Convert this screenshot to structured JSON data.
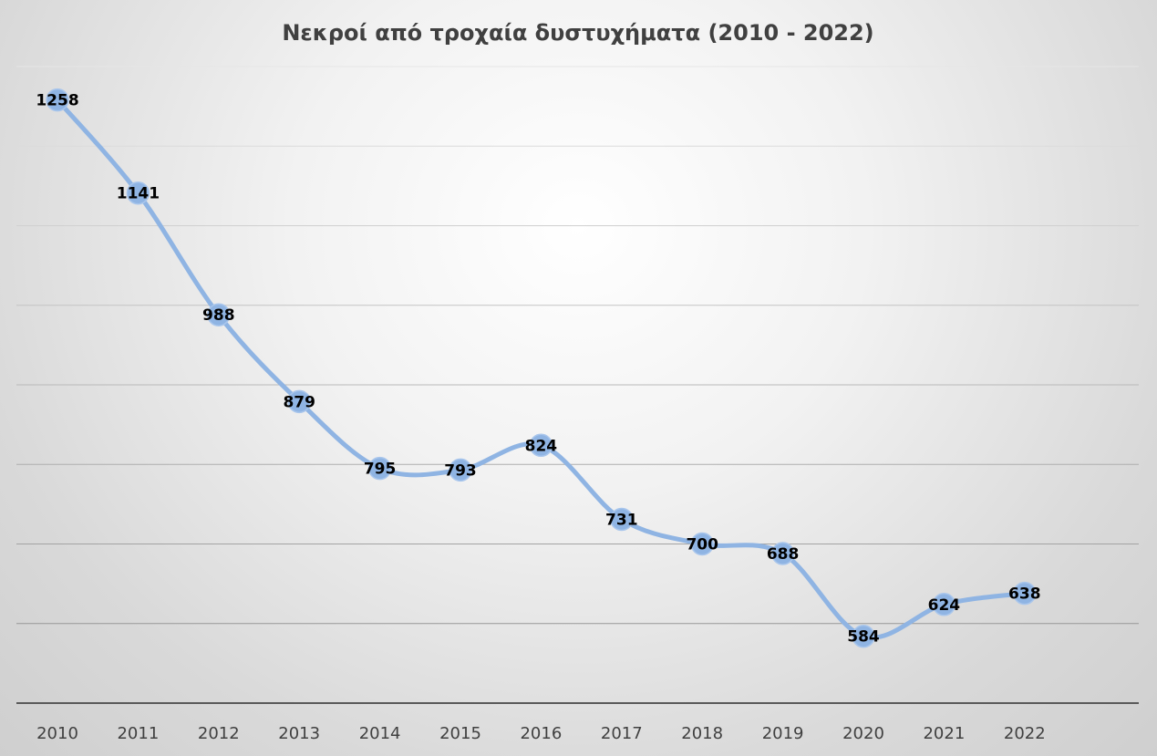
{
  "chart_data": {
    "type": "line",
    "title": "Νεκροί από τροχαία δυστυχήματα (2010 - 2022)",
    "categories": [
      "2010",
      "2011",
      "2012",
      "2013",
      "2014",
      "2015",
      "2016",
      "2017",
      "2018",
      "2019",
      "2020",
      "2021",
      "2022"
    ],
    "series": [
      {
        "values": [
          1258,
          1141,
          988,
          879,
          795,
          793,
          824,
          731,
          700,
          688,
          584,
          624,
          638
        ]
      }
    ],
    "data_labels": [
      "1258",
      "1141",
      "988",
      "879",
      "795",
      "793",
      "824",
      "731",
      "700",
      "688",
      "584",
      "624",
      "638"
    ],
    "ylim": [
      500,
      1300
    ],
    "y_gridlines": [
      600,
      700,
      800,
      900,
      1000,
      1100,
      1200,
      1300
    ],
    "y_tick_labels_visible": false,
    "smooth": true,
    "grid": true,
    "legend": "none",
    "colors": {
      "line": "#8fb4e3",
      "marker": "#8fb4e3",
      "gridline": "#d9d9d9",
      "axis": "#595959"
    }
  }
}
